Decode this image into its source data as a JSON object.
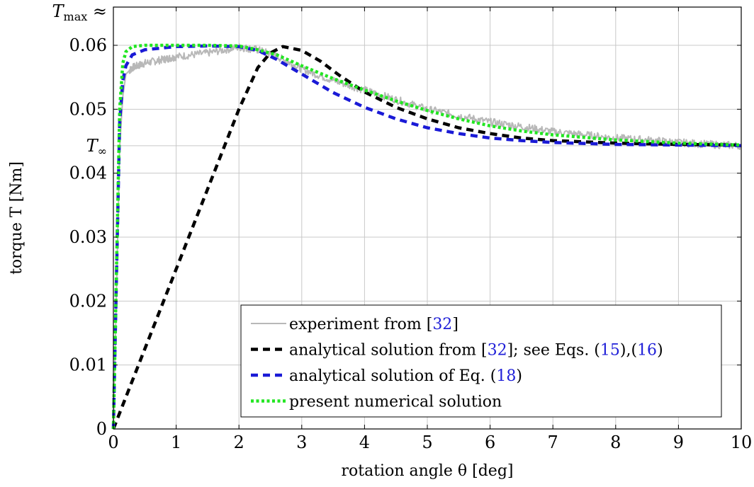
{
  "chart_data": {
    "type": "line",
    "xlabel": "rotation angle θ [deg]",
    "ylabel": "torque T [Nm]",
    "xlim": [
      0,
      10
    ],
    "ylim": [
      0,
      0.06
    ],
    "x_ticks": [
      0,
      1,
      2,
      3,
      4,
      5,
      6,
      7,
      8,
      9,
      10
    ],
    "x_tick_labels": [
      "0",
      "1",
      "2",
      "3",
      "4",
      "5",
      "6",
      "7",
      "8",
      "9",
      "10"
    ],
    "y_ticks": [
      0,
      0.01,
      0.02,
      0.03,
      0.04,
      0.05,
      0.06
    ],
    "y_tick_labels": [
      "0",
      "0.01",
      "0.02",
      "0.03",
      "0.04",
      "0.05",
      "0.06"
    ],
    "special_y_labels": [
      {
        "value": 0.066,
        "label": "T_max ≈"
      },
      {
        "value": 0.0443,
        "label": "T_∞"
      }
    ],
    "grid": true,
    "legend_position": "lower-right",
    "series": [
      {
        "name": "experiment from [32]",
        "color": "#b8b8b8",
        "style": "solid",
        "noisy": true,
        "x": [
          0,
          0.05,
          0.1,
          0.15,
          0.2,
          0.3,
          0.5,
          0.8,
          1.0,
          1.5,
          2.0,
          2.3,
          2.6,
          3.0,
          3.5,
          4.0,
          4.5,
          5.0,
          5.5,
          6.0,
          6.5,
          7.0,
          7.5,
          8.0,
          8.5,
          9.0,
          9.5,
          10.0
        ],
        "y": [
          0,
          0.022,
          0.044,
          0.052,
          0.0555,
          0.0565,
          0.0572,
          0.0578,
          0.0582,
          0.0588,
          0.0597,
          0.0593,
          0.0583,
          0.0563,
          0.0545,
          0.053,
          0.0515,
          0.05,
          0.049,
          0.048,
          0.0473,
          0.0465,
          0.046,
          0.0455,
          0.0452,
          0.0448,
          0.0445,
          0.0443
        ]
      },
      {
        "name": "analytical solution from [32]; see Eqs. (15),(16)",
        "color": "#000000",
        "style": "dashed",
        "x": [
          0,
          0.5,
          1.0,
          1.5,
          2.0,
          2.3,
          2.5,
          2.7,
          3.0,
          3.3,
          3.6,
          4.0,
          4.5,
          5.0,
          5.5,
          6.0,
          6.5,
          7.0,
          8.0,
          9.0,
          10.0
        ],
        "y": [
          0,
          0.0125,
          0.025,
          0.0375,
          0.05,
          0.0565,
          0.0588,
          0.0598,
          0.0592,
          0.0575,
          0.0553,
          0.0527,
          0.0503,
          0.0485,
          0.0471,
          0.0462,
          0.0455,
          0.0451,
          0.0447,
          0.0445,
          0.0444
        ]
      },
      {
        "name": "analytical solution of Eq. (18)",
        "color": "#1a1ad6",
        "style": "dashed",
        "x": [
          0,
          0.05,
          0.1,
          0.15,
          0.2,
          0.3,
          0.5,
          1.0,
          1.5,
          2.0,
          2.3,
          2.6,
          3.0,
          3.5,
          4.0,
          4.5,
          5.0,
          5.5,
          6.0,
          6.5,
          7.0,
          8.0,
          9.0,
          10.0
        ],
        "y": [
          0,
          0.024,
          0.048,
          0.0545,
          0.0568,
          0.0585,
          0.0593,
          0.0598,
          0.0599,
          0.0598,
          0.0592,
          0.0578,
          0.0555,
          0.0526,
          0.0503,
          0.0485,
          0.0471,
          0.0462,
          0.0455,
          0.0451,
          0.0448,
          0.0445,
          0.0444,
          0.0443
        ]
      },
      {
        "name": "present numerical solution",
        "color": "#22e622",
        "style": "dotted",
        "x": [
          0,
          0.05,
          0.1,
          0.15,
          0.2,
          0.3,
          0.5,
          1.0,
          1.5,
          2.0,
          2.3,
          2.6,
          3.0,
          3.5,
          4.0,
          4.5,
          5.0,
          5.5,
          6.0,
          6.5,
          7.0,
          8.0,
          9.0,
          10.0
        ],
        "y": [
          0,
          0.025,
          0.05,
          0.0572,
          0.059,
          0.0598,
          0.06,
          0.06,
          0.06,
          0.0599,
          0.0593,
          0.0585,
          0.0568,
          0.0548,
          0.053,
          0.0513,
          0.0498,
          0.0485,
          0.0474,
          0.0466,
          0.046,
          0.0452,
          0.0447,
          0.0444
        ]
      }
    ]
  }
}
